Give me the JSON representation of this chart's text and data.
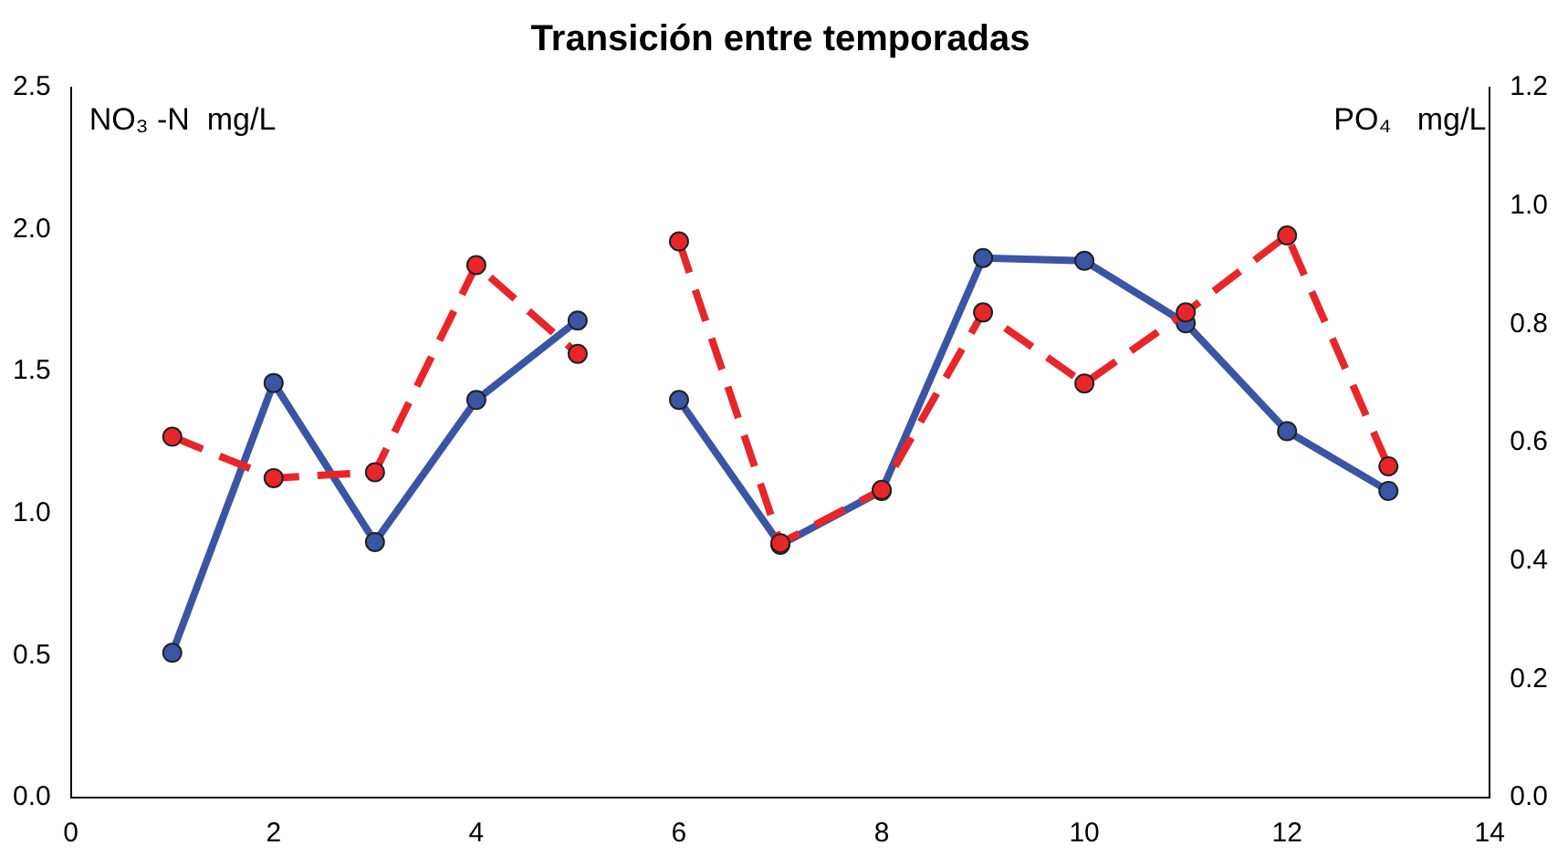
{
  "chart_data": {
    "type": "line",
    "title": "Transición entre temporadas",
    "ylabel": "NO₃ -N  mg/L",
    "y2label": "PO₄   mg/L",
    "x": [
      1,
      2,
      3,
      4,
      5,
      5.5,
      6,
      7,
      8,
      9,
      10,
      11,
      12,
      13
    ],
    "series": [
      {
        "color": "#3a55a4",
        "line_style": "solid",
        "values": [
          0.51,
          1.46,
          0.9,
          1.4,
          1.68,
          null,
          1.4,
          0.89,
          1.08,
          1.9,
          1.89,
          1.67,
          1.29,
          1.08
        ]
      },
      {
        "color": "#e8262a",
        "line_style": "dashed",
        "axis": "y2",
        "values": [
          0.61,
          0.54,
          0.55,
          0.9,
          0.75,
          null,
          0.94,
          0.43,
          0.52,
          0.82,
          0.7,
          0.82,
          0.95,
          0.56
        ]
      }
    ],
    "marker": "circle",
    "grid": false,
    "legend": false,
    "xlim": [
      0,
      14
    ],
    "xticks": [
      0,
      2,
      4,
      6,
      8,
      10,
      12,
      14
    ],
    "ylim": [
      0,
      2.5
    ],
    "yticks": [
      {
        "value": 0,
        "label": "0.0"
      },
      {
        "value": 0.5,
        "label": "0.5"
      },
      {
        "value": 1,
        "label": "1.0"
      },
      {
        "value": 1.5,
        "label": "1.5"
      },
      {
        "value": 2,
        "label": "2.0"
      },
      {
        "value": 2.5,
        "label": "2.5"
      }
    ],
    "y2lim": [
      0,
      1.2
    ],
    "y2ticks": [
      {
        "value": 0,
        "label": "0.0"
      },
      {
        "value": 0.2,
        "label": "0.2"
      },
      {
        "value": 0.4,
        "label": "0.4"
      },
      {
        "value": 0.6,
        "label": "0.6"
      },
      {
        "value": 0.8,
        "label": "0.8"
      },
      {
        "value": 1,
        "label": "1.0"
      },
      {
        "value": 1.2,
        "label": "1.2"
      }
    ]
  }
}
